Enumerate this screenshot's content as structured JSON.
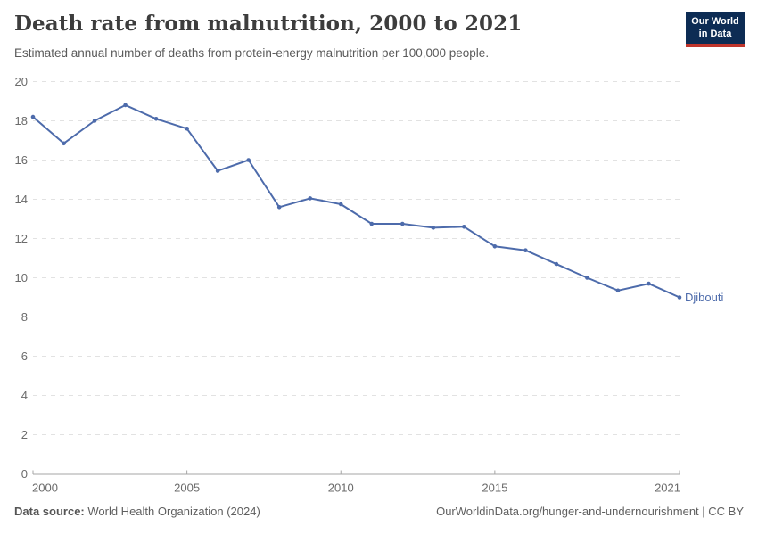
{
  "header": {
    "title": "Death rate from malnutrition, 2000 to 2021",
    "subtitle": "Estimated annual number of deaths from protein-energy malnutrition per 100,000 people.",
    "logo": {
      "line1": "Our World",
      "line2": "in Data",
      "bg_color": "#0d2c54",
      "accent_color": "#c0352c"
    }
  },
  "chart_data": {
    "type": "line",
    "title": "Death rate from malnutrition, 2000 to 2021",
    "xlabel": "",
    "ylabel": "",
    "x": [
      2000,
      2001,
      2002,
      2003,
      2004,
      2005,
      2006,
      2007,
      2008,
      2009,
      2010,
      2011,
      2012,
      2013,
      2014,
      2015,
      2016,
      2017,
      2018,
      2019,
      2020,
      2021
    ],
    "series": [
      {
        "name": "Djibouti",
        "color": "#4d6bab",
        "values": [
          18.2,
          16.85,
          18.0,
          18.8,
          18.1,
          17.6,
          15.45,
          16.0,
          13.6,
          14.05,
          13.75,
          12.75,
          12.75,
          12.55,
          12.6,
          11.6,
          11.4,
          10.7,
          10.0,
          9.35,
          9.7,
          9.0
        ]
      }
    ],
    "xlim": [
      2000,
      2021
    ],
    "ylim": [
      0,
      20
    ],
    "yticks": [
      0,
      2,
      4,
      6,
      8,
      10,
      12,
      14,
      16,
      18,
      20
    ],
    "xticks": [
      2000,
      2005,
      2010,
      2015,
      2021
    ],
    "grid": "horizontal-dashed",
    "legend": "end-of-line-label",
    "grid_color": "#e2e2e2",
    "axis_color": "#a5a5a5",
    "tick_label_color": "#6b6b6b"
  },
  "footer": {
    "source_label": "Data source:",
    "source_text": " World Health Organization (2024)",
    "credit": "OurWorldinData.org/hunger-and-undernourishment | CC BY"
  }
}
